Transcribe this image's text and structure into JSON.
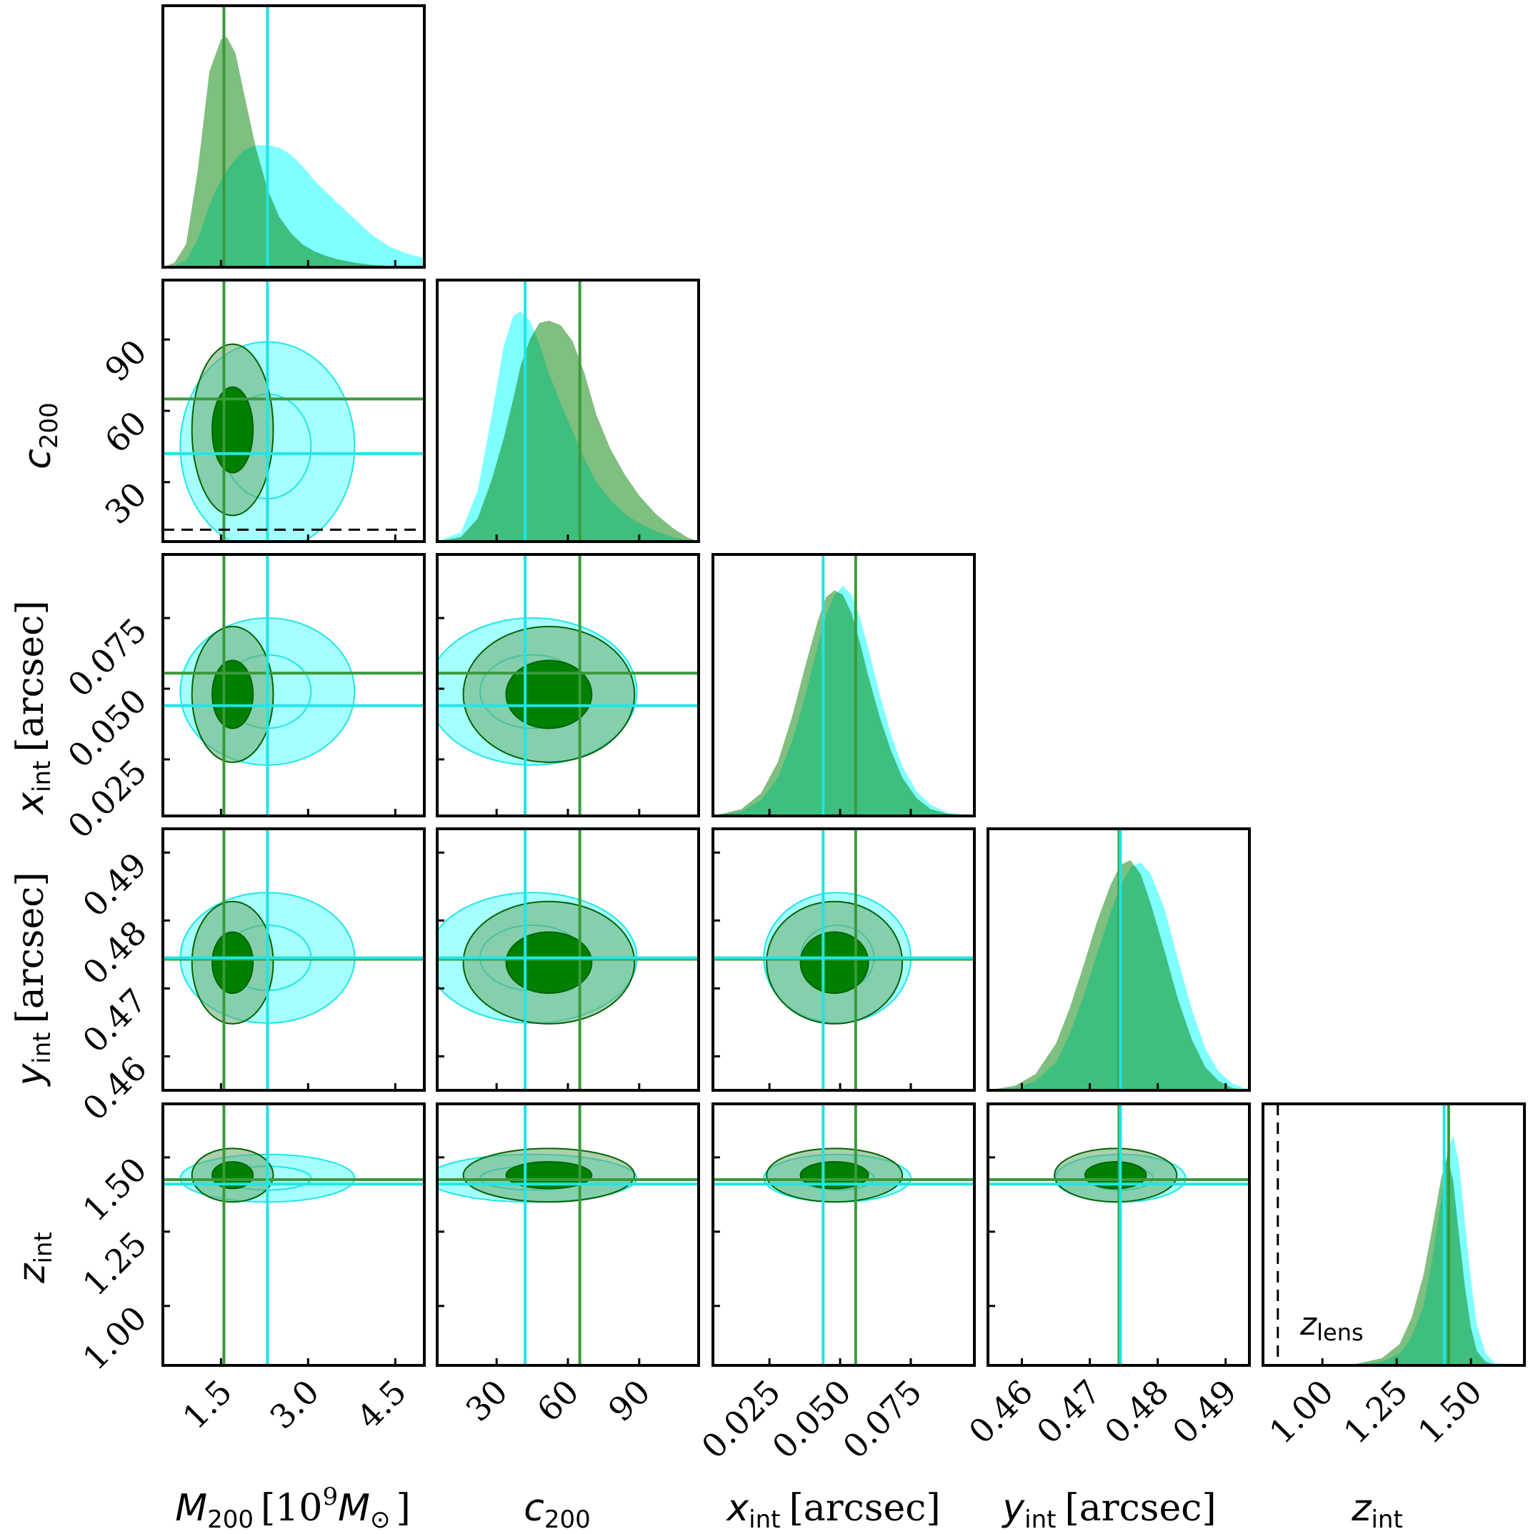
{
  "chart_data": {
    "type": "corner",
    "colors": {
      "green": "#008000",
      "cyan": "#00ffff",
      "green_line": "#3a9a3a",
      "cyan_line": "#20e5e5"
    },
    "series": [
      {
        "color": "green",
        "truths": [
          1.55,
          65,
          0.0555,
          0.4743,
          1.425
        ]
      },
      {
        "color": "cyan",
        "truths": [
          2.3,
          42,
          0.044,
          0.4745,
          1.41
        ]
      }
    ],
    "parameters": [
      {
        "key": "m200",
        "label_main": "M",
        "label_sub": "200",
        "label_rest": "[10",
        "label_sup": "9",
        "label_unit": "M",
        "label_unit_sub": "⊙",
        "label_close": "]",
        "range": [
          0.5,
          5.0
        ],
        "ticks": [
          "1.5",
          "3.0",
          "4.5"
        ],
        "tick_values": [
          1.5,
          3.0,
          4.5
        ]
      },
      {
        "key": "c200",
        "label_main": "c",
        "label_sub": "200",
        "range": [
          5,
          115
        ],
        "ticks": [
          "30",
          "60",
          "90"
        ],
        "tick_values": [
          30,
          60,
          90
        ]
      },
      {
        "key": "xint",
        "label_main": "x",
        "label_sub": "int",
        "label_rest": "[arcsec]",
        "range": [
          0.005,
          0.0975
        ],
        "ticks": [
          "0.025",
          "0.050",
          "0.075"
        ],
        "tick_values": [
          0.025,
          0.05,
          0.075
        ]
      },
      {
        "key": "yint",
        "label_main": "y",
        "label_sub": "int",
        "label_rest": "[arcsec]",
        "range": [
          0.455,
          0.4935
        ],
        "ticks": [
          "0.46",
          "0.47",
          "0.48",
          "0.49"
        ],
        "tick_values": [
          0.46,
          0.47,
          0.48,
          0.49
        ]
      },
      {
        "key": "zint",
        "label_main": "z",
        "label_sub": "int",
        "range": [
          0.8,
          1.68
        ],
        "ticks": [
          "1.00",
          "1.25",
          "1.50"
        ],
        "tick_values": [
          1.0,
          1.25,
          1.5
        ]
      }
    ],
    "histograms": {
      "bins": [
        0,
        0.1,
        0.2,
        0.3,
        0.4,
        0.5,
        0.6,
        0.7,
        0.8,
        0.9,
        1.0
      ],
      "m200": {
        "x": [
          0.5,
          0.7,
          0.9,
          1.1,
          1.3,
          1.5,
          1.6,
          1.75,
          1.9,
          2.1,
          2.3,
          2.5,
          2.7,
          2.9,
          3.1,
          3.3,
          3.5,
          3.8,
          4.1,
          4.4,
          4.7,
          5.0
        ],
        "green": [
          0,
          0.02,
          0.1,
          0.42,
          0.85,
          0.99,
          1.0,
          0.93,
          0.75,
          0.52,
          0.34,
          0.22,
          0.15,
          0.1,
          0.07,
          0.05,
          0.035,
          0.02,
          0.01,
          0.005,
          0.002,
          0
        ],
        "cyan": [
          0,
          0.005,
          0.03,
          0.12,
          0.27,
          0.38,
          0.42,
          0.47,
          0.51,
          0.53,
          0.53,
          0.52,
          0.49,
          0.44,
          0.38,
          0.33,
          0.28,
          0.21,
          0.14,
          0.09,
          0.06,
          0.04
        ]
      },
      "c200": {
        "x": [
          5,
          15,
          22,
          28,
          33,
          37,
          40,
          44,
          48,
          52,
          57,
          62,
          67,
          72,
          78,
          84,
          90,
          97,
          104,
          110,
          115
        ],
        "green": [
          0,
          0.02,
          0.1,
          0.27,
          0.45,
          0.62,
          0.76,
          0.88,
          0.95,
          0.96,
          0.94,
          0.87,
          0.73,
          0.55,
          0.4,
          0.29,
          0.2,
          0.12,
          0.06,
          0.02,
          0
        ],
        "cyan": [
          0,
          0.04,
          0.22,
          0.55,
          0.85,
          0.98,
          1.0,
          0.96,
          0.86,
          0.73,
          0.6,
          0.48,
          0.36,
          0.26,
          0.18,
          0.12,
          0.08,
          0.045,
          0.02,
          0.006,
          0
        ]
      },
      "xint": {
        "x": [
          0.005,
          0.015,
          0.022,
          0.028,
          0.033,
          0.038,
          0.042,
          0.045,
          0.048,
          0.051,
          0.054,
          0.057,
          0.06,
          0.064,
          0.068,
          0.072,
          0.077,
          0.082,
          0.088,
          0.0975
        ],
        "green": [
          0,
          0.03,
          0.1,
          0.24,
          0.44,
          0.68,
          0.86,
          0.97,
          1.0,
          0.98,
          0.9,
          0.77,
          0.62,
          0.44,
          0.29,
          0.17,
          0.08,
          0.03,
          0.01,
          0
        ],
        "cyan": [
          0,
          0.02,
          0.07,
          0.17,
          0.33,
          0.55,
          0.75,
          0.89,
          0.98,
          1.02,
          0.98,
          0.88,
          0.74,
          0.54,
          0.36,
          0.22,
          0.11,
          0.05,
          0.015,
          0
        ]
      },
      "yint": {
        "x": [
          0.455,
          0.459,
          0.462,
          0.465,
          0.467,
          0.469,
          0.471,
          0.473,
          0.4745,
          0.476,
          0.4775,
          0.479,
          0.481,
          0.483,
          0.485,
          0.487,
          0.489,
          0.491,
          0.4935
        ],
        "green": [
          0,
          0.02,
          0.07,
          0.2,
          0.35,
          0.53,
          0.72,
          0.88,
          0.97,
          0.99,
          0.93,
          0.8,
          0.6,
          0.39,
          0.22,
          0.1,
          0.04,
          0.01,
          0
        ],
        "cyan": [
          0,
          0.01,
          0.04,
          0.12,
          0.24,
          0.4,
          0.58,
          0.76,
          0.88,
          0.96,
          0.98,
          0.93,
          0.78,
          0.56,
          0.35,
          0.18,
          0.08,
          0.03,
          0
        ]
      },
      "zint": {
        "x": [
          0.8,
          1.1,
          1.2,
          1.26,
          1.3,
          1.34,
          1.37,
          1.4,
          1.42,
          1.44,
          1.46,
          1.48,
          1.5,
          1.52,
          1.55,
          1.58,
          1.68
        ],
        "green": [
          0,
          0.003,
          0.03,
          0.09,
          0.2,
          0.38,
          0.58,
          0.79,
          0.88,
          0.78,
          0.55,
          0.33,
          0.16,
          0.06,
          0.015,
          0.003,
          0
        ],
        "cyan": [
          0,
          0.002,
          0.015,
          0.05,
          0.12,
          0.25,
          0.45,
          0.7,
          0.9,
          0.97,
          0.85,
          0.6,
          0.36,
          0.17,
          0.05,
          0.01,
          0
        ]
      }
    },
    "ellipses": {
      "green": {
        "m200": [
          1.7,
          0.35
        ],
        "c200": [
          52,
          18
        ],
        "xint": [
          0.048,
          0.012
        ],
        "yint": [
          0.4738,
          0.0045
        ],
        "zint": [
          1.44,
          0.045
        ]
      },
      "cyan": {
        "m200": [
          2.3,
          0.75
        ],
        "c200": [
          45,
          22
        ],
        "xint": [
          0.049,
          0.013
        ],
        "yint": [
          0.4745,
          0.0048
        ],
        "zint": [
          1.43,
          0.04
        ]
      }
    },
    "reference_lines": [
      {
        "panel": "c200_vs_m200",
        "axis": "y",
        "value": 10,
        "style": "dashed"
      },
      {
        "panel": "zint_hist",
        "axis": "x",
        "value": 0.85,
        "style": "dashed"
      }
    ],
    "annotations": [
      {
        "panel": "zint_hist",
        "text_main": "z",
        "text_sub": "lens"
      }
    ]
  }
}
